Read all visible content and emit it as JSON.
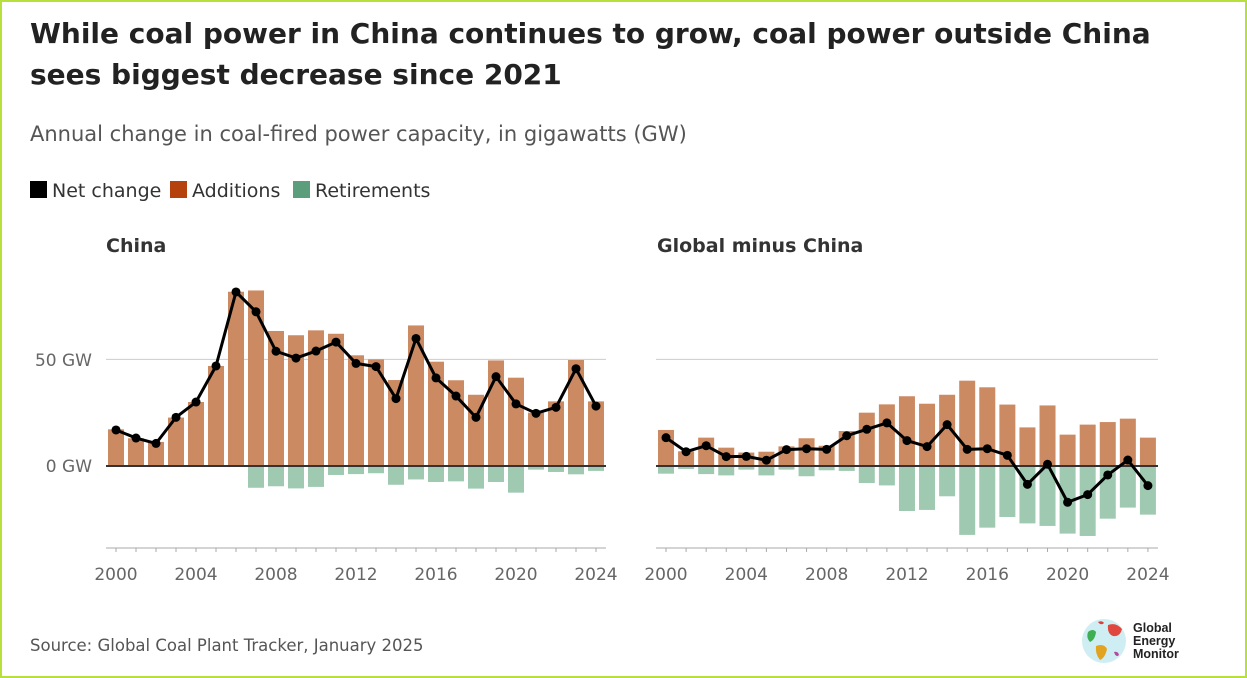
{
  "title_lines": [
    "While coal power in China continues to grow, coal power outside China",
    "sees biggest decrease since 2021"
  ],
  "subtitle": "Annual change in coal-fired power capacity, in gigawatts (GW)",
  "legend": [
    {
      "label": "Net change",
      "color": "#000000"
    },
    {
      "label": "Additions",
      "color": "#b5410c"
    },
    {
      "label": "Retirements",
      "color": "#5b9e7b"
    }
  ],
  "bar_colors": {
    "additions": "#cc8a62",
    "retirements": "#9fc9b1"
  },
  "source": "Source: Global Coal Plant Tracker, January 2025",
  "logo": {
    "lines": [
      "Global",
      "Energy",
      "Monitor"
    ]
  },
  "chart_data": [
    {
      "type": "bar",
      "title": "China",
      "x": [
        2000,
        2001,
        2002,
        2003,
        2004,
        2005,
        2006,
        2007,
        2008,
        2009,
        2010,
        2011,
        2012,
        2013,
        2014,
        2015,
        2016,
        2017,
        2018,
        2019,
        2020,
        2021,
        2022,
        2023,
        2024
      ],
      "x_ticks": [
        "2000",
        "2004",
        "2008",
        "2012",
        "2016",
        "2020",
        "2024"
      ],
      "y_ticks": [
        {
          "value": 0,
          "label": "0 GW"
        },
        {
          "value": 50,
          "label": "50 GW"
        }
      ],
      "ylim": [
        -38,
        83
      ],
      "series": [
        {
          "name": "Additions",
          "values": [
            17.2,
            13,
            11.3,
            22.7,
            30,
            46.9,
            81.7,
            82.3,
            63.3,
            61.3,
            63.6,
            62,
            51.9,
            50,
            40.3,
            65.9,
            48.9,
            40.2,
            33.4,
            49.5,
            41.4,
            25,
            30.3,
            49.7,
            30.3
          ]
        },
        {
          "name": "Retirements",
          "values": [
            0,
            0,
            0,
            0,
            0,
            0,
            -0.3,
            -10.2,
            -9.5,
            -10.5,
            -9.8,
            -4.2,
            -3.8,
            -3.4,
            -8.8,
            -6.3,
            -7.5,
            -7.2,
            -10.6,
            -7.5,
            -12.5,
            -1.7,
            -2.8,
            -3.9,
            -2.3
          ]
        },
        {
          "name": "Net change",
          "values": [
            16.9,
            13.1,
            10.6,
            22.8,
            30,
            46.9,
            81.6,
            72.3,
            53.8,
            50.6,
            53.9,
            58.1,
            48.1,
            46.6,
            31.6,
            59.8,
            41.3,
            32.8,
            22.8,
            41.9,
            29.1,
            24.7,
            27.5,
            45.6,
            28.1
          ]
        }
      ]
    },
    {
      "type": "bar",
      "title": "Global minus China",
      "x": [
        2000,
        2001,
        2002,
        2003,
        2004,
        2005,
        2006,
        2007,
        2008,
        2009,
        2010,
        2011,
        2012,
        2013,
        2014,
        2015,
        2016,
        2017,
        2018,
        2019,
        2020,
        2021,
        2022,
        2023,
        2024
      ],
      "x_ticks": [
        "2000",
        "2004",
        "2008",
        "2012",
        "2016",
        "2020",
        "2024"
      ],
      "y_ticks": [
        {
          "value": 0,
          "label": ""
        },
        {
          "value": 50,
          "label": ""
        }
      ],
      "ylim": [
        -38,
        83
      ],
      "series": [
        {
          "name": "Additions",
          "values": [
            16.9,
            6.9,
            13.3,
            8.6,
            6.3,
            6.7,
            9.2,
            13,
            9.5,
            16.4,
            25,
            28.9,
            32.7,
            29.2,
            33.4,
            40,
            36.9,
            28.8,
            18.1,
            28.4,
            14.7,
            19.4,
            20.6,
            22.2,
            13.3
          ]
        },
        {
          "name": "Retirements",
          "values": [
            -3.6,
            -1.4,
            -3.8,
            -4.4,
            -1.7,
            -4.4,
            -1.7,
            -4.8,
            -2,
            -2.3,
            -8,
            -9.1,
            -21.1,
            -20.6,
            -14.2,
            -32.3,
            -28.9,
            -23.9,
            -26.9,
            -28.1,
            -31.7,
            -32.8,
            -24.7,
            -19.5,
            -22.8
          ]
        },
        {
          "name": "Net change",
          "values": [
            13.3,
            6.7,
            9.5,
            4.4,
            4.5,
            2.7,
            7.7,
            8.1,
            7.8,
            14.2,
            17.2,
            20.2,
            11.9,
            9.1,
            19.4,
            7.8,
            8.1,
            5,
            -8.6,
            0.8,
            -17,
            -13.4,
            -4.2,
            2.8,
            -9.2
          ]
        }
      ]
    }
  ]
}
